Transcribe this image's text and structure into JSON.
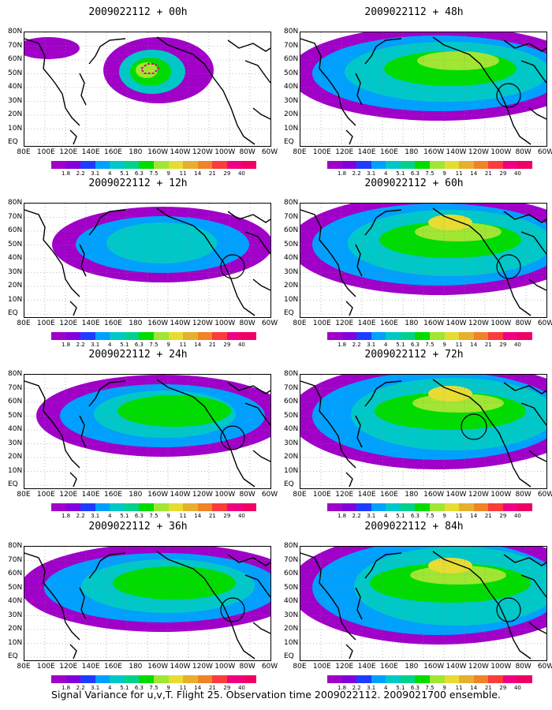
{
  "caption": "Signal Variance for u,v,T. Flight 25. Observation time 2009022112. 2009021700 ensemble.",
  "lat_labels": [
    "80N",
    "70N",
    "60N",
    "50N",
    "40N",
    "30N",
    "20N",
    "10N",
    "EQ"
  ],
  "lon_labels": [
    "80E",
    "100E",
    "120E",
    "140E",
    "160E",
    "180",
    "160W",
    "140W",
    "120W",
    "100W",
    "80W",
    "60W"
  ],
  "colorbar": {
    "labels": [
      "1.8",
      "2.2",
      "3.1",
      "4",
      "5.1",
      "6.3",
      "7.5",
      "9",
      "11",
      "14",
      "21",
      "29",
      "40"
    ],
    "colors": [
      "#a000c8",
      "#8200dc",
      "#1e3cff",
      "#00a0ff",
      "#00c8c8",
      "#00d28c",
      "#00dc00",
      "#a0e632",
      "#e6dc32",
      "#e6af2d",
      "#f08228",
      "#fa3c3c",
      "#f00082"
    ]
  },
  "panels": [
    {
      "title": "2009022112 + 00h"
    },
    {
      "title": "2009022112 + 48h"
    },
    {
      "title": "2009022112 + 12h"
    },
    {
      "title": "2009022112 + 60h"
    },
    {
      "title": "2009022112 + 24h"
    },
    {
      "title": "2009022112 + 72h"
    },
    {
      "title": "2009022112 + 36h"
    },
    {
      "title": "2009022112 + 84h"
    }
  ]
}
